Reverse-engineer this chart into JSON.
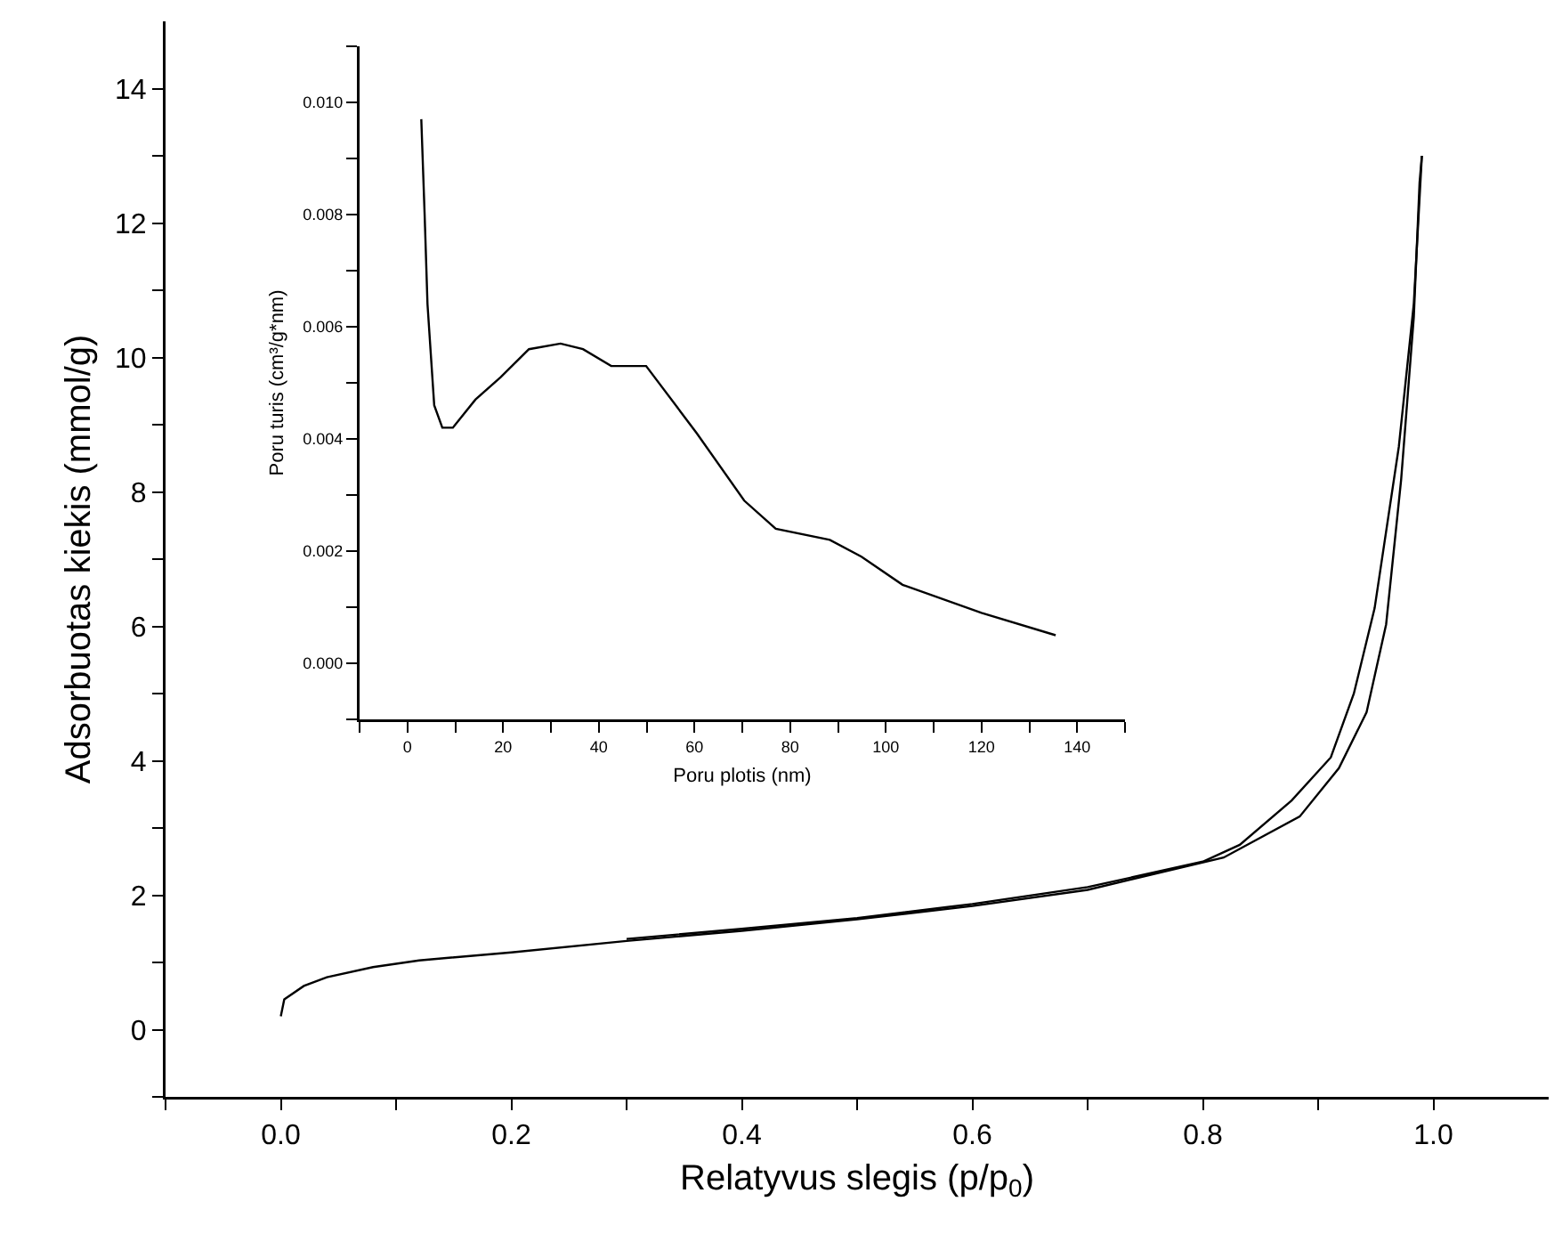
{
  "chart_data": [
    {
      "type": "line",
      "xlabel": "Relatyvus slegis (p/p$_{0}$)",
      "ylabel": "Adsorbuotas kiekis (mmol/g)",
      "xlim": [
        -0.1,
        1.1
      ],
      "ylim": [
        -1,
        15
      ],
      "xticks": [
        {
          "value": -0.1,
          "label": null
        },
        {
          "value": 0,
          "label": "0.0"
        },
        {
          "value": 0.1,
          "label": null
        },
        0.2,
        {
          "value": 0.3,
          "label": null
        },
        0.4,
        {
          "value": 0.5,
          "label": null
        },
        0.6,
        {
          "value": 0.7,
          "label": null
        },
        0.8,
        {
          "value": 0.9,
          "label": null
        },
        {
          "value": 1,
          "label": "1.0"
        }
      ],
      "yticks": [
        {
          "value": -1,
          "label": null
        },
        0,
        {
          "value": 1,
          "label": null
        },
        2,
        {
          "value": 3,
          "label": null
        },
        4,
        {
          "value": 5,
          "label": null
        },
        6,
        {
          "value": 7,
          "label": null
        },
        8,
        {
          "value": 9,
          "label": null
        },
        10,
        {
          "value": 11,
          "label": null
        },
        12,
        {
          "value": 13,
          "label": null
        },
        14
      ],
      "series": [
        {
          "color": "#000000",
          "x": [
            0.0,
            0.003,
            0.02,
            0.04,
            0.08,
            0.12,
            0.2,
            0.3,
            0.4,
            0.5,
            0.6,
            0.7,
            0.818,
            0.884,
            0.918,
            0.942,
            0.959,
            0.972,
            0.983,
            0.988,
            0.99
          ],
          "values": [
            0.2,
            0.45,
            0.65,
            0.78,
            0.93,
            1.03,
            1.15,
            1.32,
            1.47,
            1.64,
            1.84,
            2.08,
            2.56,
            3.17,
            3.89,
            4.72,
            6.03,
            8.18,
            10.6,
            12.6,
            13.0
          ]
        },
        {
          "color": "#000000",
          "x": [
            0.99,
            0.983,
            0.97,
            0.949,
            0.931,
            0.911,
            0.877,
            0.832,
            0.8,
            0.7,
            0.6,
            0.5,
            0.4,
            0.3
          ],
          "values": [
            13.0,
            10.8,
            8.67,
            6.27,
            5.0,
            4.05,
            3.41,
            2.75,
            2.5,
            2.12,
            1.87,
            1.66,
            1.5,
            1.35
          ]
        }
      ]
    },
    {
      "type": "line",
      "xlabel": "Poru plotis (nm)",
      "ylabel": "Poru turis (cm³/g*nm)",
      "xlim": [
        -10,
        150
      ],
      "ylim": [
        -0.001,
        0.011
      ],
      "xticks": [
        {
          "value": -10,
          "label": null
        },
        0,
        {
          "value": 10,
          "label": null
        },
        20,
        {
          "value": 30,
          "label": null
        },
        40,
        {
          "value": 50,
          "label": null
        },
        60,
        {
          "value": 70,
          "label": null
        },
        80,
        {
          "value": 90,
          "label": null
        },
        100,
        {
          "value": 110,
          "label": null
        },
        120,
        {
          "value": 130,
          "label": null
        },
        140,
        {
          "value": 150,
          "label": null
        }
      ],
      "yticks": [
        {
          "value": -0.001,
          "label": null
        },
        {
          "value": 0,
          "label": "0.000"
        },
        {
          "value": 0.001,
          "label": null
        },
        {
          "value": 0.002,
          "label": "0.002"
        },
        {
          "value": 0.003,
          "label": null
        },
        {
          "value": 0.004,
          "label": "0.004"
        },
        {
          "value": 0.005,
          "label": null
        },
        {
          "value": 0.006,
          "label": "0.006"
        },
        {
          "value": 0.007,
          "label": null
        },
        {
          "value": 0.008,
          "label": "0.008"
        },
        {
          "value": 0.009,
          "label": null
        },
        {
          "value": 0.01,
          "label": "0.010"
        },
        {
          "value": 0.011,
          "label": null
        }
      ],
      "series": [
        {
          "color": "#000000",
          "x": [
            2.9,
            3.6,
            4.2,
            5.6,
            7.3,
            9.5,
            14.2,
            19.5,
            25.4,
            32.0,
            36.7,
            42.6,
            49.9,
            60.5,
            70.4,
            77.0,
            88.3,
            94.9,
            103.5,
            120,
            135.5
          ],
          "values": [
            0.0097,
            0.008,
            0.0064,
            0.0046,
            0.0042,
            0.0042,
            0.0047,
            0.0051,
            0.0056,
            0.0057,
            0.0056,
            0.0053,
            0.0053,
            0.0041,
            0.0029,
            0.0024,
            0.0022,
            0.0019,
            0.0014,
            0.0009,
            0.0005
          ]
        }
      ]
    }
  ]
}
